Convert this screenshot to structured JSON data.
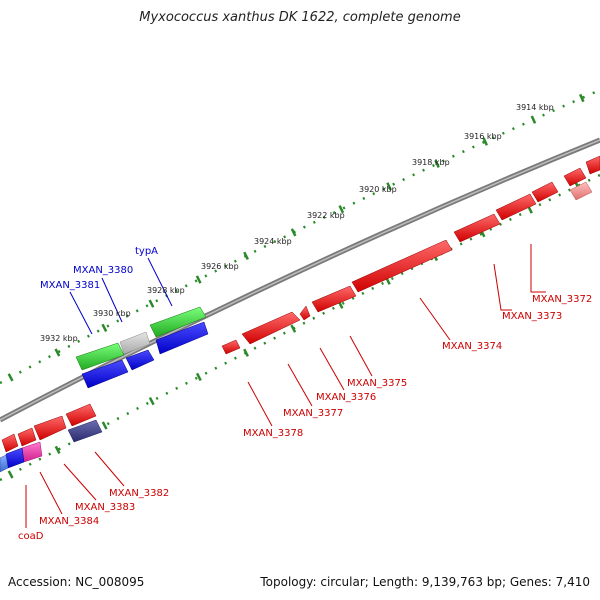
{
  "title": "Myxococcus xanthus DK 1622, complete genome",
  "accession": "Accession: NC_008095",
  "summary": "Topology: circular; Length: 9,139,763 bp; Genes: 7,410",
  "scale_labels": [
    "3914 kbp",
    "3916 kbp",
    "3918 kbp",
    "3920 kbp",
    "3922 kbp",
    "3924 kbp",
    "3926 kbp",
    "3928 kbp",
    "3930 kbp",
    "3932 kbp"
  ],
  "forward_gene_labels": [
    "typA",
    "MXAN_3380",
    "MXAN_3381"
  ],
  "reverse_gene_labels": [
    "MXAN_3372",
    "MXAN_3373",
    "MXAN_3374",
    "MXAN_3375",
    "MXAN_3376",
    "MXAN_3377",
    "MXAN_3378",
    "MXAN_3382",
    "MXAN_3383",
    "MXAN_3384",
    "coaD"
  ],
  "colors": {
    "forward_label": "#0000cc",
    "reverse_label": "#cc0000",
    "backbone": "#808080",
    "tick": "#2a8a2a"
  }
}
